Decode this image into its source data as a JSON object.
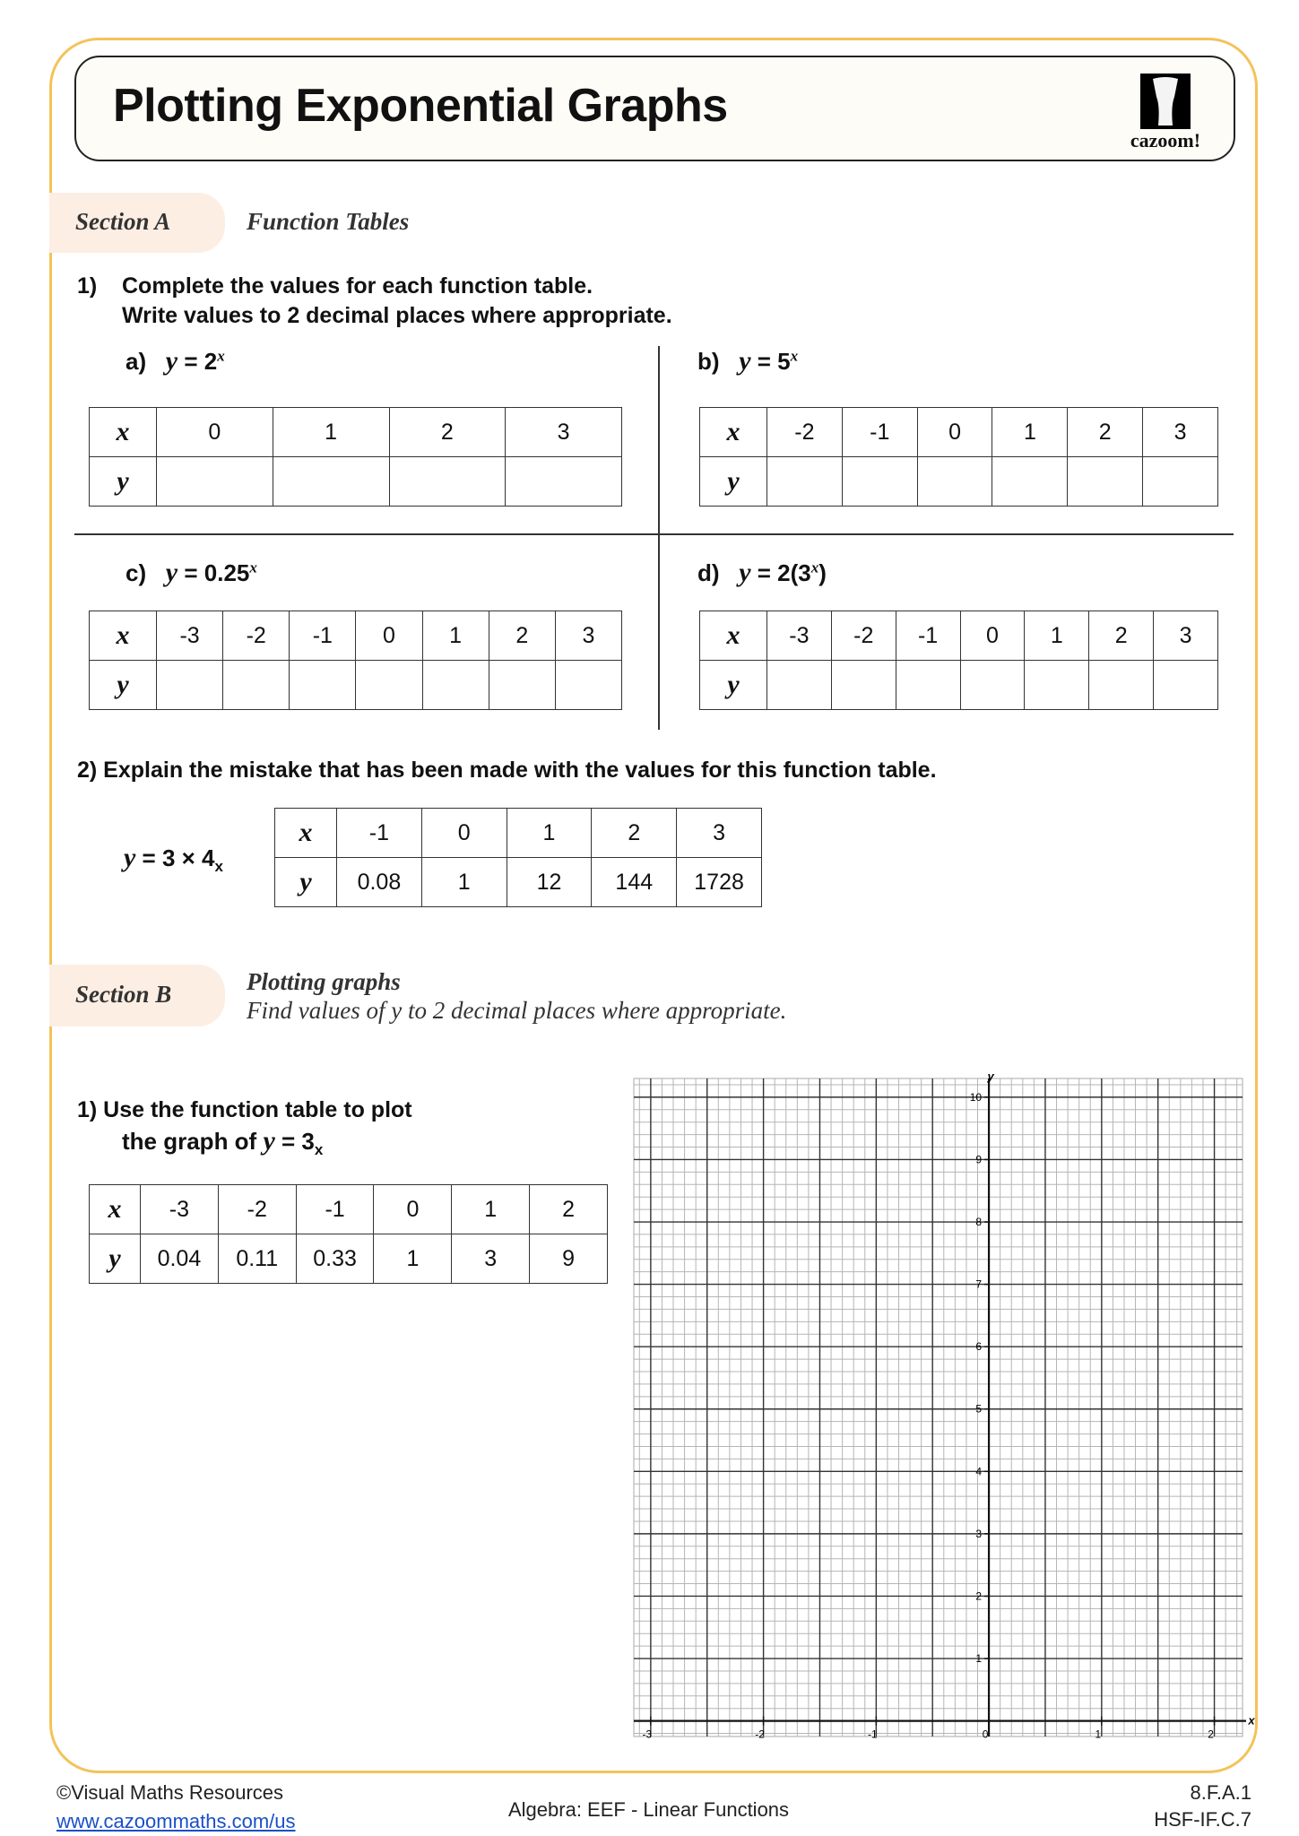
{
  "title": "Plotting Exponential Graphs",
  "logo_text": "cazoom!",
  "colors": {
    "border": "#f3c35a",
    "pill": "#fdeee3",
    "link": "#1a4fc9"
  },
  "section_a": {
    "label": "Section A",
    "heading": "Function Tables",
    "q1_number": "1)",
    "q1_line1": "Complete the values for each function table.",
    "q1_line2": "Write values to 2 decimal places where appropriate.",
    "parts": [
      {
        "letter": "a)",
        "y": "y",
        "eq": " = 2",
        "exp": "x",
        "tail": "",
        "x_header": "x",
        "y_header": "y",
        "x": [
          "0",
          "1",
          "2",
          "3"
        ],
        "yvals": [
          "",
          "",
          "",
          ""
        ]
      },
      {
        "letter": "b)",
        "y": "y",
        "eq": " = 5",
        "exp": "x",
        "tail": "",
        "x_header": "x",
        "y_header": "y",
        "x": [
          "-2",
          "-1",
          "0",
          "1",
          "2",
          "3"
        ],
        "yvals": [
          "",
          "",
          "",
          "",
          "",
          ""
        ]
      },
      {
        "letter": "c)",
        "y": "y",
        "eq": " = 0.25",
        "exp": "x",
        "tail": "",
        "x_header": "x",
        "y_header": "y",
        "x": [
          "-3",
          "-2",
          "-1",
          "0",
          "1",
          "2",
          "3"
        ],
        "yvals": [
          "",
          "",
          "",
          "",
          "",
          "",
          ""
        ]
      },
      {
        "letter": "d)",
        "y": "y",
        "eq": " = 2(3",
        "exp": "x",
        "tail": ")",
        "x_header": "x",
        "y_header": "y",
        "x": [
          "-3",
          "-2",
          "-1",
          "0",
          "1",
          "2",
          "3"
        ],
        "yvals": [
          "",
          "",
          "",
          "",
          "",
          "",
          ""
        ]
      }
    ],
    "q2_text": "2)  Explain the mistake that has been made with the values for this function table.",
    "q2_eq": {
      "y": "y",
      "eq": " = 3 × 4",
      "sub": "x"
    },
    "q2_table": {
      "x_header": "x",
      "y_header": "y",
      "x": [
        "-1",
        "0",
        "1",
        "2",
        "3"
      ],
      "yvals": [
        "0.08",
        "1",
        "12",
        "144",
        "1728"
      ]
    }
  },
  "section_b": {
    "label": "Section B",
    "heading": "Plotting graphs",
    "subheading": "Find values of y to 2 decimal places where appropriate.",
    "q1_line1": "1)  Use the function table to plot",
    "q1_line2_pre": "the graph of ",
    "q1_eq": {
      "y": "y",
      "eq": " = 3",
      "sub": "x"
    },
    "table": {
      "x_header": "x",
      "y_header": "y",
      "x": [
        "-3",
        "-2",
        "-1",
        "0",
        "1",
        "2"
      ],
      "yvals": [
        "0.04",
        "0.11",
        "0.33",
        "1",
        "3",
        "9"
      ]
    }
  },
  "graph": {
    "x_axis_label": "x",
    "y_axis_label": "y",
    "xlim": [
      -3.15,
      2.25
    ],
    "ylim": [
      -0.25,
      10.3
    ],
    "x_ticks": [
      "-3",
      "-2",
      "-1",
      "0",
      "1",
      "2"
    ],
    "y_ticks": [
      "1",
      "2",
      "3",
      "4",
      "5",
      "6",
      "7",
      "8",
      "9",
      "10"
    ],
    "grid": true
  },
  "footer": {
    "copyright": "©Visual Maths Resources",
    "link": "www.cazoommaths.com/us",
    "topic": "Algebra: EEF - Linear Functions",
    "code1": "8.F.A.1",
    "code2": "HSF-IF.C.7"
  }
}
